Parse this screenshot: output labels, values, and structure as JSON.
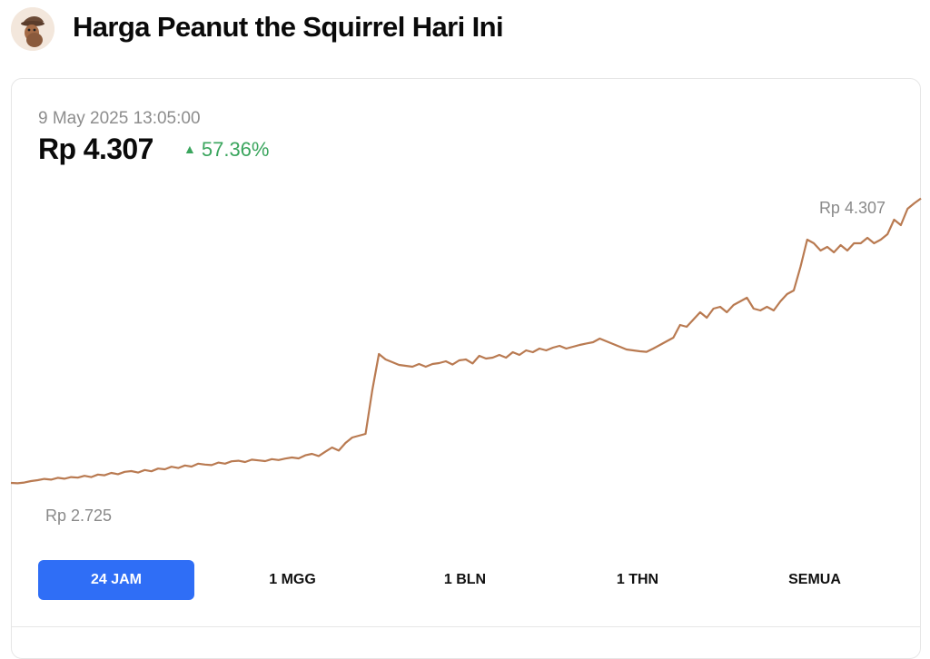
{
  "header": {
    "title": "Harga Peanut the Squirrel Hari Ini",
    "logo_icon": "squirrel-logo-icon"
  },
  "summary": {
    "timestamp": "9 May 2025 13:05:00",
    "price": "Rp 4.307",
    "change": "57.36%",
    "change_direction": "up",
    "change_color": "#3aa55d"
  },
  "chart_data": {
    "type": "line",
    "title": "",
    "xlabel": "",
    "ylabel": "",
    "high_label": "Rp 4.307",
    "low_label": "Rp 2.725",
    "ylim": [
      2600,
      4450
    ],
    "line_color": "#b97a51",
    "grid": false,
    "series": [
      {
        "values": [
          2740,
          2738,
          2742,
          2750,
          2755,
          2762,
          2758,
          2768,
          2763,
          2772,
          2769,
          2779,
          2772,
          2786,
          2782,
          2795,
          2788,
          2801,
          2805,
          2797,
          2811,
          2804,
          2819,
          2815,
          2829,
          2822,
          2836,
          2830,
          2846,
          2841,
          2838,
          2852,
          2846,
          2859,
          2862,
          2855,
          2868,
          2864,
          2860,
          2871,
          2866,
          2874,
          2880,
          2875,
          2892,
          2900,
          2888,
          2912,
          2935,
          2918,
          2960,
          2990,
          3000,
          3010,
          3250,
          3450,
          3420,
          3405,
          3390,
          3385,
          3380,
          3395,
          3380,
          3395,
          3400,
          3410,
          3392,
          3415,
          3420,
          3398,
          3440,
          3425,
          3430,
          3445,
          3430,
          3460,
          3445,
          3470,
          3460,
          3480,
          3470,
          3485,
          3495,
          3480,
          3490,
          3500,
          3508,
          3515,
          3535,
          3520,
          3505,
          3490,
          3475,
          3470,
          3465,
          3462,
          3480,
          3500,
          3520,
          3540,
          3610,
          3600,
          3640,
          3680,
          3650,
          3700,
          3710,
          3680,
          3720,
          3740,
          3760,
          3700,
          3690,
          3710,
          3690,
          3740,
          3780,
          3800,
          3930,
          4080,
          4060,
          4020,
          4040,
          4010,
          4050,
          4020,
          4060,
          4060,
          4090,
          4060,
          4080,
          4110,
          4190,
          4160,
          4250,
          4280,
          4307
        ]
      }
    ]
  },
  "ranges": [
    {
      "label": "24 JAM",
      "active": true
    },
    {
      "label": "1 MGG",
      "active": false
    },
    {
      "label": "1 BLN",
      "active": false
    },
    {
      "label": "1 THN",
      "active": false
    },
    {
      "label": "SEMUA",
      "active": false
    }
  ]
}
